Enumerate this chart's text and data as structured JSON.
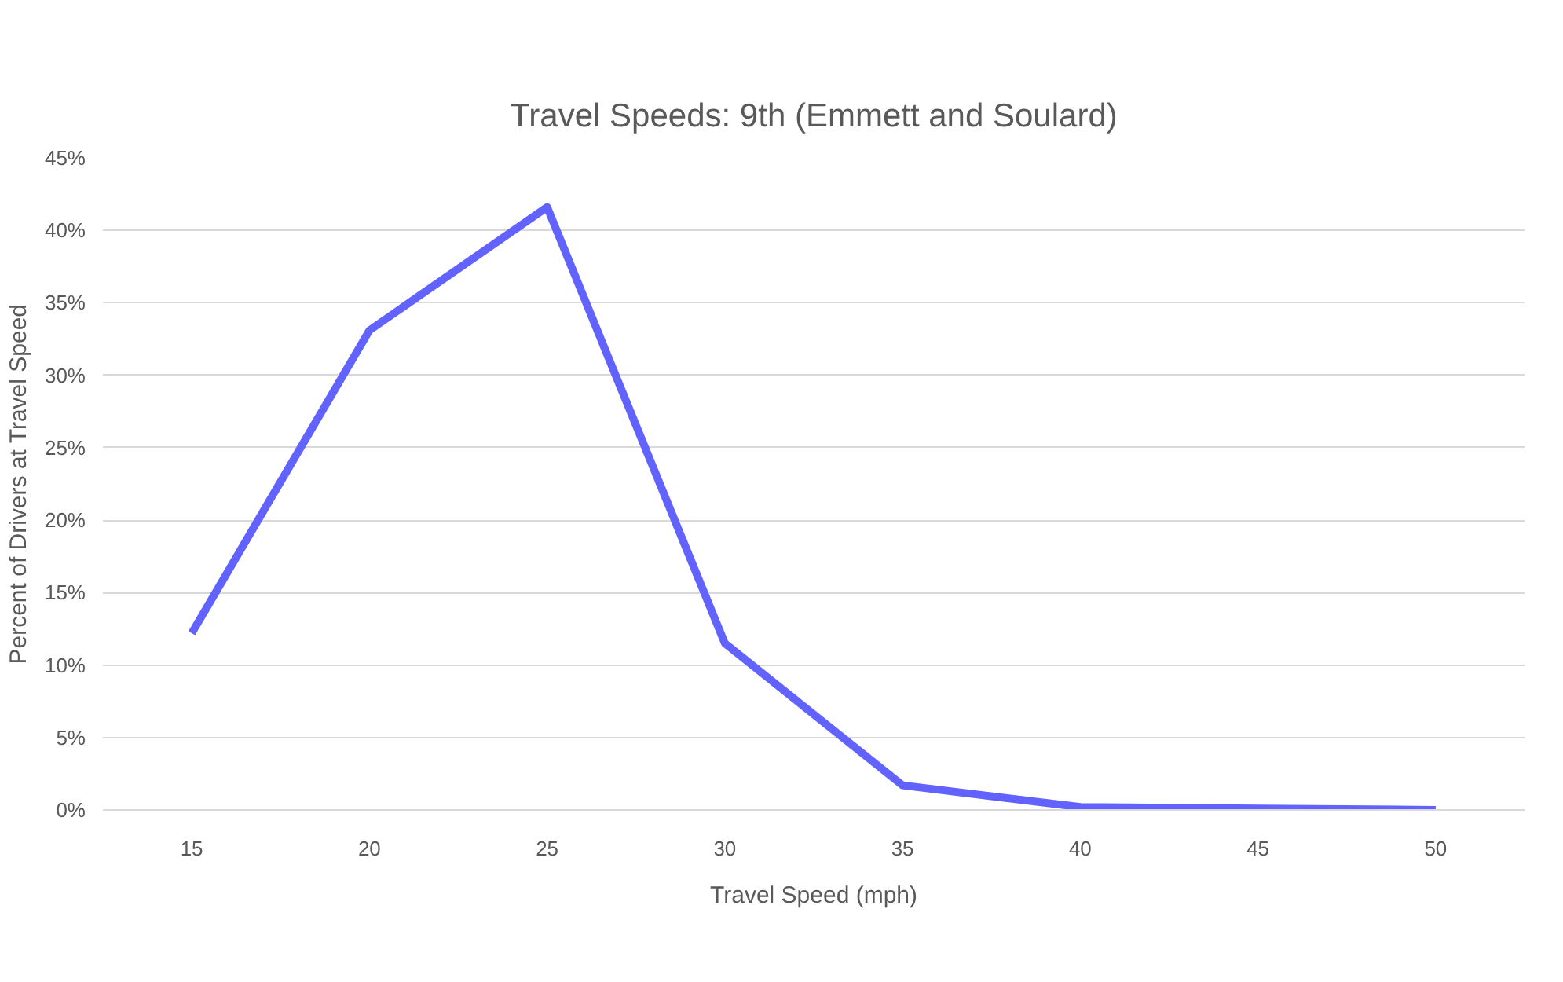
{
  "chart_data": {
    "type": "line",
    "title": "Travel Speeds: 9th (Emmett and Soulard)",
    "xlabel": "Travel Speed (mph)",
    "ylabel": "Percent of Drivers at Travel Speed",
    "categories": [
      "15",
      "20",
      "25",
      "30",
      "35",
      "40",
      "45",
      "50"
    ],
    "series": [
      {
        "color": "#6262ff",
        "values": [
          12.2,
          33.1,
          41.6,
          11.5,
          1.7,
          0.2,
          0.1,
          0.0
        ]
      }
    ],
    "ylim": [
      0,
      45
    ],
    "yticks": [
      {
        "value": 0,
        "label": "0%"
      },
      {
        "value": 5,
        "label": "5%"
      },
      {
        "value": 10,
        "label": "10%"
      },
      {
        "value": 15,
        "label": "15%"
      },
      {
        "value": 20,
        "label": "20%"
      },
      {
        "value": 25,
        "label": "25%"
      },
      {
        "value": 30,
        "label": "30%"
      },
      {
        "value": 35,
        "label": "35%"
      },
      {
        "value": 40,
        "label": "40%"
      },
      {
        "value": 45,
        "label": "45%"
      }
    ],
    "grid": "y",
    "marker": "none",
    "line_style": "solid"
  }
}
